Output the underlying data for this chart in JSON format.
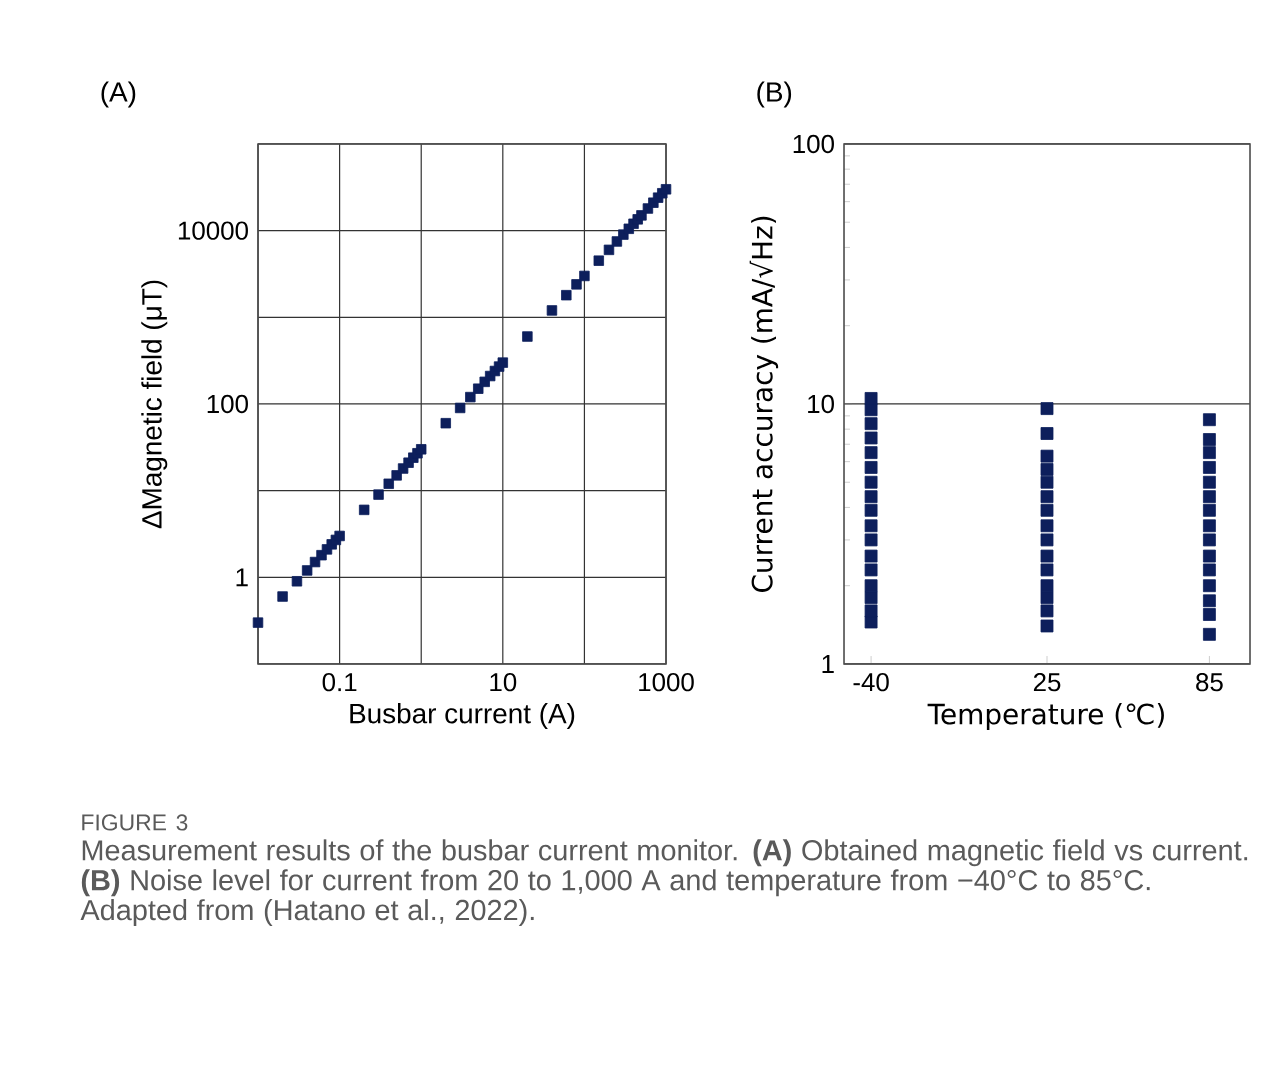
{
  "chart_data": [
    {
      "type": "scatter",
      "title": "(A)",
      "xlabel": "Busbar current (A)",
      "ylabel": "ΔMagnetic field (μT)",
      "log": "xy",
      "grid": true,
      "marker": "square",
      "xlim": [
        0.01,
        1000
      ],
      "ylim": [
        0.1,
        100000
      ],
      "xticks": [
        {
          "value": 0.01,
          "label": null
        },
        0.1,
        {
          "value": 1,
          "label": null
        },
        10,
        {
          "value": 100,
          "label": null
        },
        1000
      ],
      "yticks": [
        {
          "value": 0.1,
          "label": null
        },
        1,
        {
          "value": 10,
          "label": null
        },
        100,
        {
          "value": 1000,
          "label": null
        },
        10000,
        {
          "value": 100000,
          "label": null
        }
      ],
      "series": [
        {
          "color": "#0d1f5c",
          "x": [
            0.01,
            0.02,
            0.03,
            0.04,
            0.05,
            0.06,
            0.07,
            0.08,
            0.09,
            0.1,
            0.2,
            0.3,
            0.4,
            0.5,
            0.6,
            0.7,
            0.8,
            0.9,
            1,
            2,
            3,
            4,
            5,
            6,
            7,
            8,
            9,
            10,
            20,
            40,
            60,
            80,
            100,
            150,
            200,
            250,
            300,
            350,
            400,
            450,
            500,
            600,
            700,
            800,
            900,
            1000
          ],
          "values": [
            0.3,
            0.6,
            0.9,
            1.2,
            1.5,
            1.8,
            2.1,
            2.4,
            2.7,
            3,
            6,
            9,
            12,
            15,
            18,
            21,
            24,
            27,
            30,
            60,
            90,
            120,
            150,
            180,
            210,
            240,
            270,
            300,
            600,
            1200,
            1800,
            2400,
            3000,
            4500,
            6000,
            7500,
            9000,
            10500,
            12000,
            13500,
            15000,
            18000,
            21000,
            24000,
            27000,
            30000
          ]
        }
      ],
      "annotations": [
        "FIGURE 3",
        "Measurement results of the busbar current monitor. **(A)** Obtained magnetic field vs current. **(B)** Noise level for current from 20 to 1,000 A and temperature from −40°C to 85°C. Adapted from (Hatano et al., 2022)."
      ]
    },
    {
      "type": "scatter",
      "title": "(B)",
      "xlabel": "Temperature (℃)",
      "ylabel": "Current accuracy (mA/√Hz)",
      "log": "y",
      "grid": "y",
      "marker": "square",
      "xlim": [
        -50,
        100
      ],
      "ylim": [
        1,
        100
      ],
      "xticks": [
        -40,
        25,
        85
      ],
      "yticks": [
        1,
        10,
        100
      ],
      "series": [
        {
          "color": "#0d1f5c",
          "x": [
            -40,
            -40,
            -40,
            -40,
            -40,
            -40,
            -40,
            -40,
            -40,
            -40,
            -40,
            -40,
            -40,
            -40,
            -40,
            -40,
            -40,
            25,
            25,
            25,
            25,
            25,
            25,
            25,
            25,
            25,
            25,
            25,
            25,
            25,
            25,
            25,
            85,
            85,
            85,
            85,
            85,
            85,
            85,
            85,
            85,
            85,
            85,
            85,
            85,
            85,
            85
          ],
          "values": [
            1.45,
            1.6,
            1.8,
            2,
            2.3,
            2.6,
            3,
            3.4,
            3.9,
            4.4,
            5,
            5.7,
            6.5,
            7.4,
            8.4,
            9.5,
            10.5,
            1.4,
            1.6,
            1.8,
            2,
            2.3,
            2.6,
            3,
            3.4,
            3.9,
            4.4,
            5,
            5.6,
            6.3,
            7.7,
            9.6,
            1.3,
            1.55,
            1.75,
            2,
            2.3,
            2.6,
            3,
            3.4,
            3.9,
            4.4,
            5,
            5.7,
            6.5,
            7.3,
            8.7
          ]
        }
      ]
    }
  ]
}
